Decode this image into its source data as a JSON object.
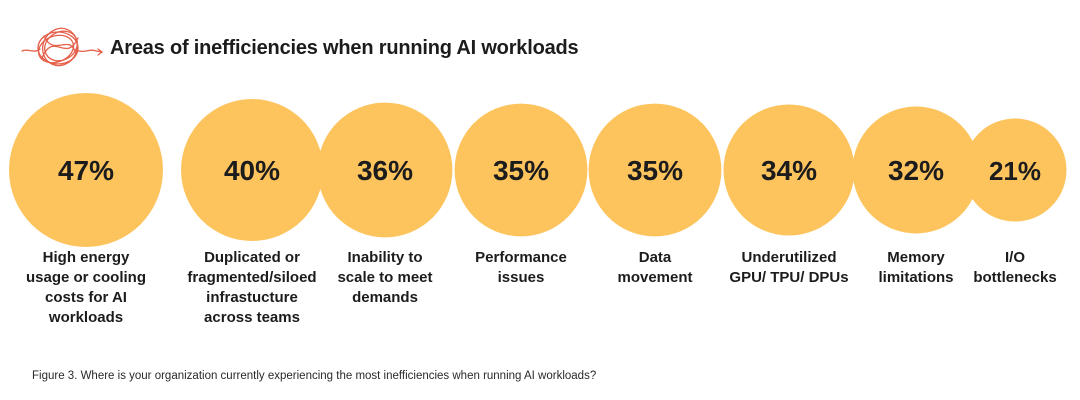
{
  "chart_data": {
    "type": "bubble",
    "title": "Areas of inefficiencies when running AI workloads",
    "value_unit": "%",
    "categories": [
      "High energy\nusage or cooling\ncosts for AI\nworkloads",
      "Duplicated or\nfragmented/siloed\ninfrastucture\nacross teams",
      "Inability to\nscale to meet\ndemands",
      "Performance\nissues",
      "Data\nmovement",
      "Underutilized\nGPU/ TPU/ DPUs",
      "Memory\nlimitations",
      "I/O\nbottlenecks"
    ],
    "values": [
      47,
      40,
      36,
      35,
      35,
      34,
      32,
      21
    ],
    "labels": [
      "47%",
      "40%",
      "36%",
      "35%",
      "35%",
      "34%",
      "32%",
      "21%"
    ],
    "caption": "Figure 3. Where is your organization currently experiencing the most inefficiencies when running AI workloads?"
  },
  "colors": {
    "bubble": "#FDC45E",
    "icon_stroke": "#E5604B",
    "text": "#1c1c1c"
  },
  "icon": "scribble-icon"
}
